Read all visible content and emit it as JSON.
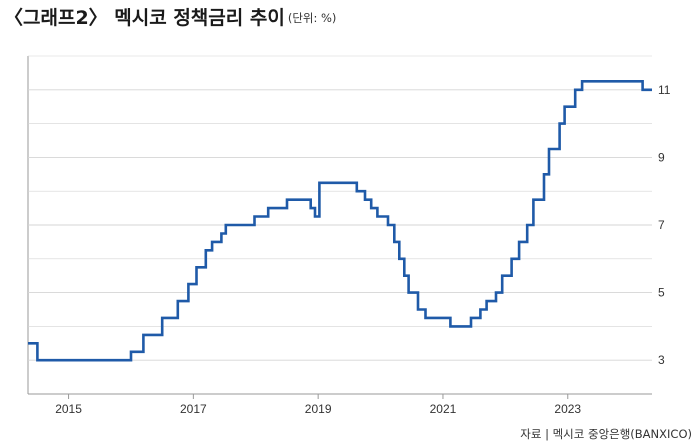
{
  "title": "〈그래프2〉 멕시코 정책금리 추이",
  "unit": "(단위: %)",
  "source": "자료 | 멕시코 중앙은행(BANXICO)",
  "colors": {
    "line": "#1f5aa8",
    "grid": "#d5d5d5",
    "axis": "#999999"
  },
  "chart_data": {
    "type": "line",
    "title": "〈그래프2〉 멕시코 정책금리 추이",
    "unit": "(단위: %)",
    "step": true,
    "xlim": [
      2014.35,
      2024.35
    ],
    "ylim": [
      2.0,
      12.0
    ],
    "x_ticks": [
      2015,
      2017,
      2019,
      2021,
      2023
    ],
    "x_tick_labels": [
      "2015",
      "2017",
      "2019",
      "2021",
      "2023"
    ],
    "y_ticks": [
      3,
      5,
      7,
      9,
      11
    ],
    "y_tick_labels": [
      "3",
      "5",
      "7",
      "9",
      "11"
    ],
    "y_axis_side": "right",
    "grid": "horizontal",
    "series": [
      {
        "values": [
          [
            2014.35,
            3.5
          ],
          [
            2014.5,
            3.0
          ],
          [
            2016.0,
            3.25
          ],
          [
            2016.2,
            3.75
          ],
          [
            2016.5,
            4.25
          ],
          [
            2016.75,
            4.75
          ],
          [
            2016.92,
            5.25
          ],
          [
            2017.05,
            5.75
          ],
          [
            2017.2,
            6.25
          ],
          [
            2017.3,
            6.5
          ],
          [
            2017.45,
            6.75
          ],
          [
            2017.52,
            7.0
          ],
          [
            2017.98,
            7.25
          ],
          [
            2018.2,
            7.5
          ],
          [
            2018.5,
            7.75
          ],
          [
            2018.88,
            7.5
          ],
          [
            2018.95,
            7.25
          ],
          [
            2019.02,
            8.25
          ],
          [
            2019.62,
            8.0
          ],
          [
            2019.75,
            7.75
          ],
          [
            2019.85,
            7.5
          ],
          [
            2019.95,
            7.25
          ],
          [
            2020.12,
            7.0
          ],
          [
            2020.22,
            6.5
          ],
          [
            2020.3,
            6.0
          ],
          [
            2020.38,
            5.5
          ],
          [
            2020.45,
            5.0
          ],
          [
            2020.6,
            4.5
          ],
          [
            2020.72,
            4.25
          ],
          [
            2021.12,
            4.0
          ],
          [
            2021.45,
            4.25
          ],
          [
            2021.6,
            4.5
          ],
          [
            2021.7,
            4.75
          ],
          [
            2021.85,
            5.0
          ],
          [
            2021.95,
            5.5
          ],
          [
            2022.1,
            6.0
          ],
          [
            2022.22,
            6.5
          ],
          [
            2022.35,
            7.0
          ],
          [
            2022.45,
            7.75
          ],
          [
            2022.62,
            8.5
          ],
          [
            2022.7,
            9.25
          ],
          [
            2022.87,
            10.0
          ],
          [
            2022.95,
            10.5
          ],
          [
            2023.12,
            11.0
          ],
          [
            2023.23,
            11.25
          ],
          [
            2024.2,
            11.0
          ]
        ]
      }
    ]
  }
}
